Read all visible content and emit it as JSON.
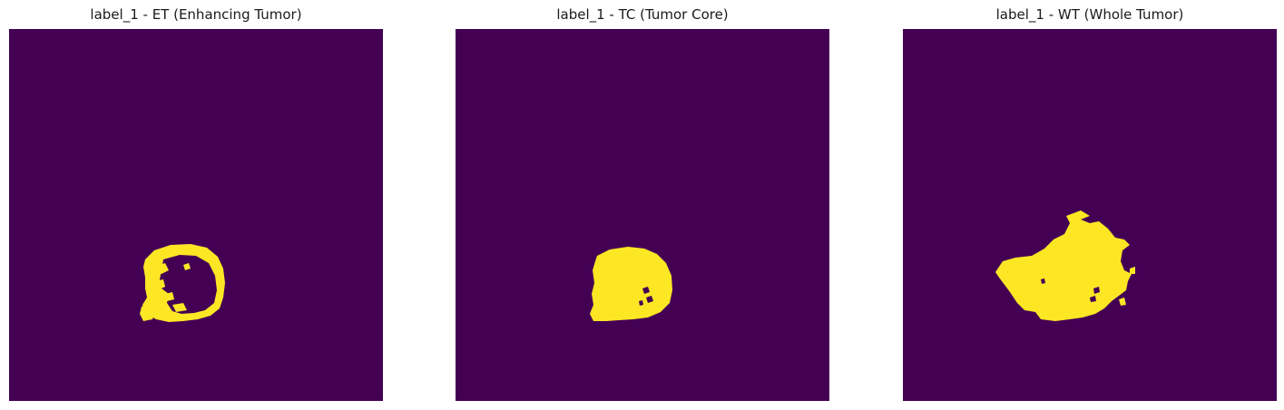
{
  "colors": {
    "background_label": "#440154",
    "foreground_label": "#fde725",
    "page": "#ffffff"
  },
  "panels": [
    {
      "title": "label_1 - ET (Enhancing Tumor)",
      "region": "enhancing-tumor"
    },
    {
      "title": "label_1 - TC (Tumor Core)",
      "region": "tumor-core"
    },
    {
      "title": "label_1 - WT (Whole Tumor)",
      "region": "whole-tumor"
    }
  ]
}
